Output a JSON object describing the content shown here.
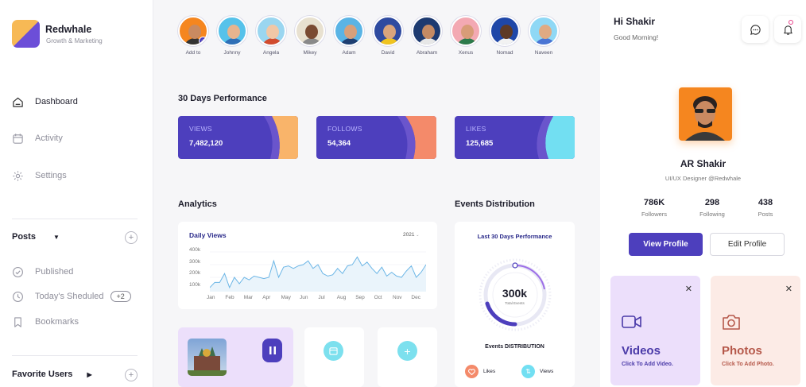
{
  "brand": {
    "name": "Redwhale",
    "tagline": "Growth & Marketing"
  },
  "nav": [
    {
      "label": "Dashboard",
      "icon": "home-icon",
      "active": true
    },
    {
      "label": "Activity",
      "icon": "calendar-icon"
    },
    {
      "label": "Settings",
      "icon": "gear-icon"
    }
  ],
  "posts": {
    "title": "Posts",
    "items": [
      {
        "label": "Published",
        "icon": "check-circle-icon"
      },
      {
        "label": "Today's Sheduled",
        "icon": "clock-icon",
        "badge": "+2"
      },
      {
        "label": "Bookmarks",
        "icon": "bookmark-icon"
      }
    ]
  },
  "favorites": {
    "title": "Favorite Users"
  },
  "users": [
    {
      "name": "Add to",
      "bg": "#f5861f",
      "skin": "#c98a61",
      "shirt": "#333"
    },
    {
      "name": "Johnny",
      "bg": "#56c2ea",
      "skin": "#e6b48e",
      "shirt": "#2f6fb7"
    },
    {
      "name": "Angela",
      "bg": "#9ad6f0",
      "skin": "#f1c7a6",
      "shirt": "#d14b2e"
    },
    {
      "name": "Mikey",
      "bg": "#e8e1d0",
      "skin": "#7a4b32",
      "shirt": "#8a8a8a"
    },
    {
      "name": "Adam",
      "bg": "#5ab4e5",
      "skin": "#d7a07b",
      "shirt": "#1e3f72"
    },
    {
      "name": "David",
      "bg": "#2e4aa0",
      "skin": "#d9a47c",
      "shirt": "#f0c420"
    },
    {
      "name": "Abraham",
      "bg": "#1d3a70",
      "skin": "#c48a63",
      "shirt": "#e7e7e7"
    },
    {
      "name": "Xenus",
      "bg": "#f3a9b3",
      "skin": "#d89c78",
      "shirt": "#2c7a4b"
    },
    {
      "name": "Nomad",
      "bg": "#1f47a8",
      "skin": "#5e3a26",
      "shirt": "#f2f2f2"
    },
    {
      "name": "Naveen",
      "bg": "#8fd8f5",
      "skin": "#e0aa82",
      "shirt": "#4a74d4"
    }
  ],
  "performance": {
    "title": "30 Days Performance",
    "cards": [
      {
        "label": "VIEWS",
        "value": "7,482,120",
        "accent": "#f9b46a"
      },
      {
        "label": "FOLLOWS",
        "value": "54,364",
        "accent": "#f48a6a"
      },
      {
        "label": "LIKES",
        "value": "125,685",
        "accent": "#72dff2"
      }
    ]
  },
  "analytics": {
    "title": "Analytics",
    "chart_title": "Daily Views",
    "year": "2021",
    "y_ticks": [
      "400k",
      "300k",
      "200k",
      "100k"
    ],
    "months": [
      "Jan",
      "Feb",
      "Mar",
      "Apr",
      "May",
      "Jun",
      "Jul",
      "Aug",
      "Sep",
      "Oct",
      "Nov",
      "Dec"
    ],
    "values": [
      120,
      160,
      160,
      230,
      120,
      200,
      150,
      200,
      180,
      210,
      200,
      190,
      200,
      330,
      200,
      280,
      290,
      270,
      290,
      300,
      330,
      270,
      300,
      230,
      210,
      220,
      270,
      230,
      290,
      300,
      360,
      290,
      320,
      270,
      230,
      280,
      210,
      240,
      210,
      200,
      250,
      290,
      200,
      240,
      300
    ]
  },
  "events": {
    "title": "Events Distribution",
    "card_title": "Last 30 Days Performance",
    "center_value": "300k",
    "center_label": "Total Events",
    "caption": "Events DISTRIBUTION",
    "likes_label": "Likes",
    "views_label": "Views"
  },
  "profile": {
    "greeting": "Hi Shakir",
    "subgreeting": "Good Morning!",
    "name": "AR Shakir",
    "role": "UI/UX Designer @Redwhale",
    "stats": [
      {
        "value": "786K",
        "label": "Followers"
      },
      {
        "value": "298",
        "label": "Following"
      },
      {
        "value": "438",
        "label": "Posts"
      }
    ],
    "view_btn": "View Profile",
    "edit_btn": "Edit Profile"
  },
  "tiles": [
    {
      "title": "Videos",
      "sub": "Click To Add Video.",
      "icon": "video-icon",
      "bg": "#ecdffb",
      "color": "#4a3aa8"
    },
    {
      "title": "Photos",
      "sub": "Click To Add Photo.",
      "icon": "camera-icon",
      "bg": "#fcebe6",
      "color": "#b5584a"
    }
  ],
  "colors": {
    "primary": "#4d3fbd"
  }
}
